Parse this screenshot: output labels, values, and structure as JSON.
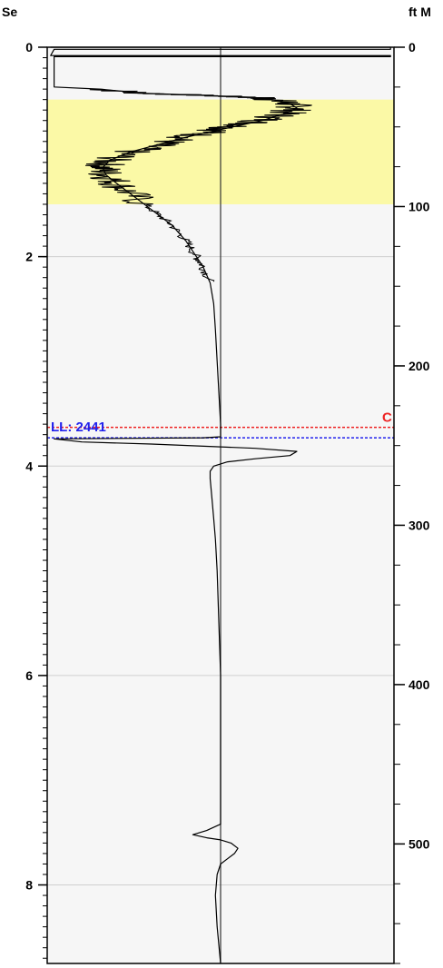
{
  "chart_data": {
    "type": "line",
    "left_axis": {
      "label": "Se",
      "range": [
        0,
        8.75
      ],
      "ticks": [
        0,
        2,
        4,
        6,
        8
      ],
      "tick_labels": [
        "0",
        "2",
        "4",
        "6",
        "8"
      ],
      "minor_step": 0.1
    },
    "right_axis": {
      "label": "ft M",
      "range": [
        0,
        575
      ],
      "ticks": [
        0,
        100,
        200,
        300,
        400,
        500
      ],
      "tick_labels": [
        "0",
        "100",
        "200",
        "300",
        "400",
        "500"
      ],
      "minor_step": 25
    },
    "x_range": [
      0,
      1
    ],
    "highlight_band": {
      "from": 0.5,
      "to": 1.5,
      "color": "#fbf9a6"
    },
    "background_color": "#f6f6f6",
    "trace_color": "#000000",
    "center_line_x": 0.5,
    "markers": [
      {
        "label": "LL: 2441",
        "y": 3.73,
        "color": "#2222ee"
      },
      {
        "label": "C",
        "y": 3.63,
        "color": "#ee2222"
      }
    ],
    "grid": true,
    "series": [
      {
        "points": [
          [
            0.01,
            0.0
          ],
          [
            0.5,
            0.0
          ],
          [
            0.99,
            0.0
          ],
          [
            0.99,
            0.02
          ],
          [
            0.02,
            0.02
          ],
          [
            0.01,
            0.08
          ],
          [
            0.99,
            0.08
          ],
          [
            0.99,
            0.09
          ],
          [
            0.02,
            0.09
          ],
          [
            0.02,
            0.38
          ],
          [
            0.15,
            0.4
          ],
          [
            0.28,
            0.44
          ],
          [
            0.45,
            0.46
          ],
          [
            0.6,
            0.48
          ],
          [
            0.65,
            0.5
          ],
          [
            0.7,
            0.54
          ],
          [
            0.72,
            0.58
          ],
          [
            0.68,
            0.64
          ],
          [
            0.62,
            0.7
          ],
          [
            0.55,
            0.75
          ],
          [
            0.48,
            0.8
          ],
          [
            0.4,
            0.86
          ],
          [
            0.32,
            0.93
          ],
          [
            0.24,
            1.0
          ],
          [
            0.18,
            1.08
          ],
          [
            0.16,
            1.15
          ],
          [
            0.17,
            1.22
          ],
          [
            0.2,
            1.3
          ],
          [
            0.24,
            1.4
          ],
          [
            0.3,
            1.55
          ],
          [
            0.36,
            1.7
          ],
          [
            0.4,
            1.85
          ],
          [
            0.43,
            2.0
          ],
          [
            0.45,
            2.1
          ],
          [
            0.47,
            2.25
          ],
          [
            0.48,
            2.45
          ],
          [
            0.485,
            2.7
          ],
          [
            0.49,
            3.0
          ],
          [
            0.495,
            3.3
          ],
          [
            0.5,
            3.6
          ],
          [
            0.5,
            3.72
          ],
          [
            0.45,
            3.73
          ],
          [
            0.02,
            3.74
          ],
          [
            0.1,
            3.77
          ],
          [
            0.3,
            3.79
          ],
          [
            0.6,
            3.83
          ],
          [
            0.72,
            3.86
          ],
          [
            0.7,
            3.9
          ],
          [
            0.6,
            3.93
          ],
          [
            0.52,
            3.96
          ],
          [
            0.48,
            4.0
          ],
          [
            0.47,
            4.05
          ],
          [
            0.47,
            4.12
          ],
          [
            0.475,
            4.3
          ],
          [
            0.48,
            4.5
          ],
          [
            0.485,
            4.7
          ],
          [
            0.49,
            5.0
          ],
          [
            0.495,
            5.5
          ],
          [
            0.5,
            6.0
          ],
          [
            0.5,
            7.0
          ],
          [
            0.5,
            7.42
          ],
          [
            0.46,
            7.48
          ],
          [
            0.42,
            7.52
          ],
          [
            0.46,
            7.55
          ],
          [
            0.5,
            7.57
          ],
          [
            0.53,
            7.6
          ],
          [
            0.55,
            7.65
          ],
          [
            0.54,
            7.7
          ],
          [
            0.52,
            7.75
          ],
          [
            0.5,
            7.8
          ],
          [
            0.49,
            7.9
          ],
          [
            0.485,
            8.1
          ],
          [
            0.49,
            8.4
          ],
          [
            0.5,
            8.75
          ]
        ]
      }
    ]
  }
}
